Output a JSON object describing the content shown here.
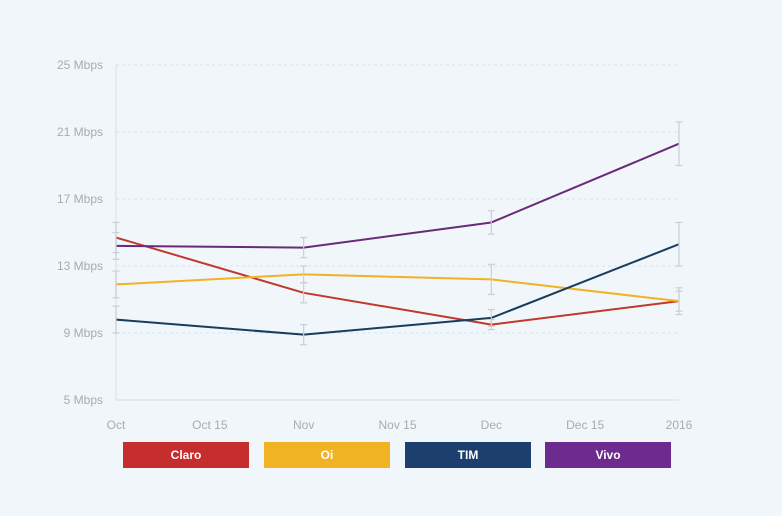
{
  "chart_data": {
    "type": "line",
    "title": "",
    "xlabel": "",
    "ylabel": "",
    "x_ticks": [
      "Oct",
      "Oct 15",
      "Nov",
      "Nov 15",
      "Dec",
      "Dec 15",
      "2016"
    ],
    "x_points": [
      "Oct",
      "Nov",
      "Dec",
      "2016"
    ],
    "y_ticks": [
      "5 Mbps",
      "9 Mbps",
      "13 Mbps",
      "17 Mbps",
      "21 Mbps",
      "25 Mbps"
    ],
    "ylim": [
      5,
      25
    ],
    "unit": "Mbps",
    "grid": true,
    "error_bars": true,
    "legend_position": "bottom",
    "series": [
      {
        "name": "Claro",
        "color": "#c0392b",
        "values": [
          14.7,
          11.4,
          9.5,
          10.9
        ],
        "error": [
          0.9,
          0.6,
          0.3,
          0.6
        ]
      },
      {
        "name": "Oi",
        "color": "#f0b323",
        "values": [
          11.9,
          12.5,
          12.2,
          10.9
        ],
        "error": [
          0.8,
          0.5,
          0.9,
          0.8
        ]
      },
      {
        "name": "TIM",
        "color": "#1a3d5c",
        "values": [
          9.8,
          8.9,
          9.9,
          14.3
        ],
        "error": [
          0.8,
          0.6,
          0.5,
          1.3
        ]
      },
      {
        "name": "Vivo",
        "color": "#6a2a7a",
        "values": [
          14.2,
          14.1,
          15.6,
          20.3
        ],
        "error": [
          0.8,
          0.6,
          0.7,
          1.3
        ]
      }
    ]
  },
  "legend": {
    "items": [
      {
        "label": "Claro",
        "color": "#c62d2d"
      },
      {
        "label": "Oi",
        "color": "#f0b323"
      },
      {
        "label": "TIM",
        "color": "#1c3f6e"
      },
      {
        "label": "Vivo",
        "color": "#6d2b8f"
      }
    ]
  }
}
